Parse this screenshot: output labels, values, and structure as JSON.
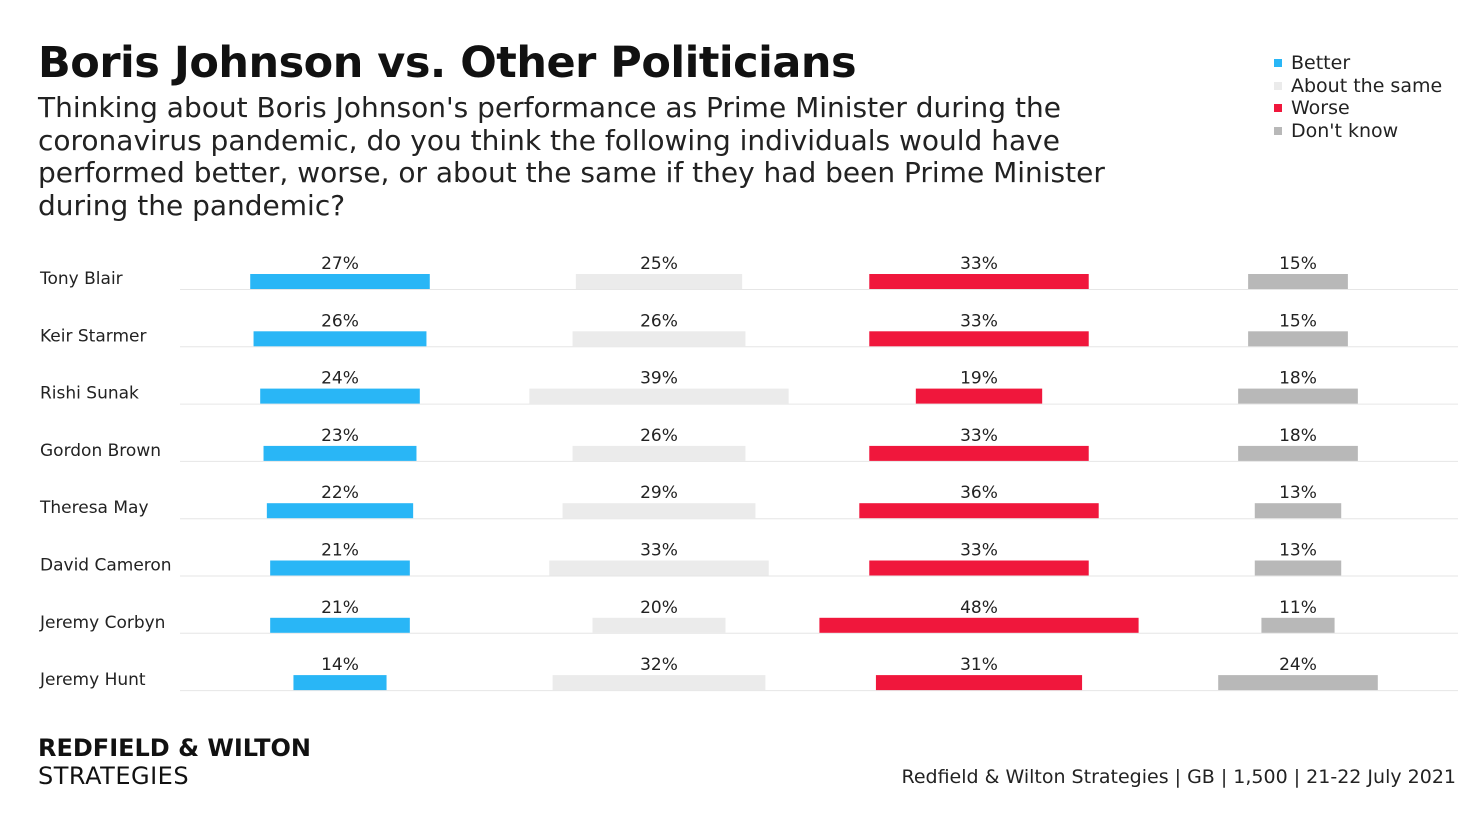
{
  "chart_data": {
    "type": "bar",
    "title": "Boris Johnson vs. Other Politicians",
    "subtitle": "Thinking about Boris Johnson's performance as Prime Minister during the coronavirus pandemic, do you think the following individuals would have performed better, worse, or about the same if they had been Prime Minister during the pandemic?",
    "categories": [
      "Tony Blair",
      "Keir Starmer",
      "Rishi Sunak",
      "Gordon Brown",
      "Theresa May",
      "David Cameron",
      "Jeremy Corbyn",
      "Jeremy Hunt"
    ],
    "series": [
      {
        "name": "Better",
        "color": "#29b6f6",
        "values": [
          27,
          26,
          24,
          23,
          22,
          21,
          21,
          14
        ],
        "labels": [
          "27%",
          "26%",
          "24%",
          "23%",
          "22%",
          "21%",
          "21%",
          "14%"
        ]
      },
      {
        "name": "About the same",
        "color": "#ebebeb",
        "values": [
          25,
          26,
          39,
          26,
          29,
          33,
          20,
          32
        ],
        "labels": [
          "25%",
          "26%",
          "39%",
          "26%",
          "29%",
          "33%",
          "20%",
          "32%"
        ]
      },
      {
        "name": "Worse",
        "color": "#f0173c",
        "values": [
          33,
          33,
          19,
          33,
          36,
          33,
          48,
          31
        ],
        "labels": [
          "33%",
          "33%",
          "19%",
          "33%",
          "36%",
          "33%",
          "48%",
          "31%"
        ]
      },
      {
        "name": "Don't know",
        "color": "#b8b8b8",
        "values": [
          15,
          15,
          18,
          18,
          13,
          13,
          11,
          24
        ],
        "labels": [
          "15%",
          "15%",
          "18%",
          "18%",
          "13%",
          "13%",
          "11%",
          "24%"
        ]
      }
    ],
    "legend_position": "top-right",
    "grid": false,
    "separator_color": "#e6e6e6"
  },
  "branding": {
    "line1": "REDFIELD & WILTON",
    "line2": "STRATEGIES"
  },
  "source": "Redfield & Wilton Strategies | GB | 1,500 | 21-22 July 2021"
}
